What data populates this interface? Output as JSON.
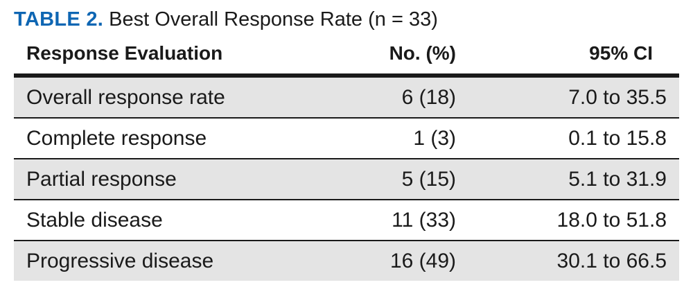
{
  "caption": {
    "label": "TABLE 2.",
    "title": "Best Overall Response Rate (n = 33)"
  },
  "columns": [
    "Response Evaluation",
    "No. (%)",
    "95% CI"
  ],
  "rows": [
    {
      "label": "Overall response rate",
      "count": "6 (18)",
      "ci": "7.0 to 35.5"
    },
    {
      "label": "Complete response",
      "count": "1 (3)",
      "ci": "0.1 to 15.8"
    },
    {
      "label": "Partial response",
      "count": "5 (15)",
      "ci": "5.1 to 31.9"
    },
    {
      "label": "Stable disease",
      "count": "11 (33)",
      "ci": "18.0 to 51.8"
    },
    {
      "label": "Progressive disease",
      "count": "16 (49)",
      "ci": "30.1 to 66.5"
    }
  ],
  "colors": {
    "caption_label": "#0e66b3",
    "row_shading": "#e4e4e4",
    "rule": "#1a1a1a"
  }
}
